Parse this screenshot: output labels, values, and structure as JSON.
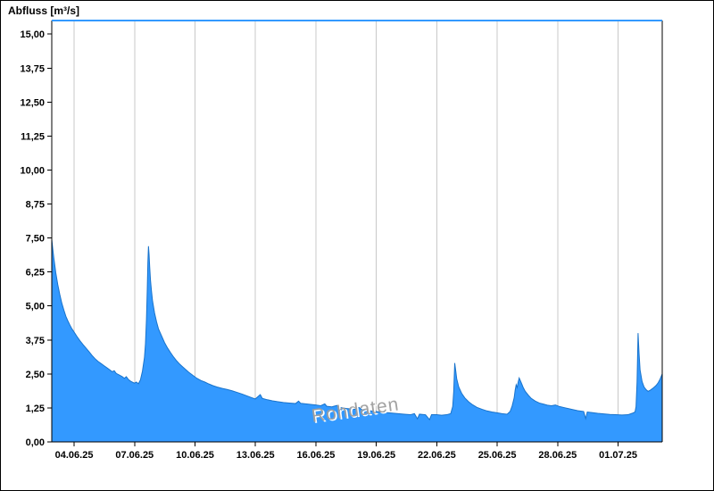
{
  "watermark": {
    "text": "Rohdaten",
    "color": "#9e9e9e",
    "highlight": "#ffffff"
  },
  "chart_data": {
    "type": "area",
    "title": "Abfluss [m³/s]",
    "xlabel": "",
    "ylabel": "Abfluss [m³/s]",
    "series_name": "Abfluss Rohdaten",
    "ylim": [
      0,
      15.5
    ],
    "x_range_days": [
      0,
      30.3
    ],
    "grid": "vertical-only",
    "legend_position": "none",
    "colors": {
      "area_fill": "#3399FF",
      "area_stroke": "#1873CC",
      "top_border": "#3399FF",
      "grid": "#C8C8C8",
      "axis": "#000000"
    },
    "yticks": {
      "values": [
        0,
        1.25,
        2.5,
        3.75,
        5,
        6.25,
        7.5,
        8.75,
        10,
        11.25,
        12.5,
        13.75,
        15
      ],
      "labels": [
        "0,00",
        "1,25",
        "2,50",
        "3,75",
        "5,00",
        "6,25",
        "7,50",
        "8,75",
        "10,00",
        "11,25",
        "12,50",
        "13,75",
        "15,00"
      ]
    },
    "xticks": {
      "days": [
        1.11,
        4.11,
        7.11,
        10.11,
        13.11,
        16.11,
        19.11,
        22.11,
        25.11,
        28.11
      ],
      "labels": [
        "04.06.25",
        "07.06.25",
        "10.06.25",
        "13.06.25",
        "16.06.25",
        "19.06.25",
        "22.06.25",
        "25.06.25",
        "28.06.25",
        "01.07.25"
      ]
    },
    "points": [
      [
        0,
        7.45
      ],
      [
        0.05,
        7.1
      ],
      [
        0.1,
        6.78
      ],
      [
        0.15,
        6.5
      ],
      [
        0.2,
        6.22
      ],
      [
        0.3,
        5.78
      ],
      [
        0.4,
        5.42
      ],
      [
        0.5,
        5.1
      ],
      [
        0.6,
        4.85
      ],
      [
        0.7,
        4.62
      ],
      [
        0.8,
        4.45
      ],
      [
        0.9,
        4.3
      ],
      [
        1.0,
        4.16
      ],
      [
        1.1,
        4.05
      ],
      [
        1.25,
        3.88
      ],
      [
        1.4,
        3.72
      ],
      [
        1.55,
        3.58
      ],
      [
        1.7,
        3.45
      ],
      [
        1.85,
        3.32
      ],
      [
        2.0,
        3.18
      ],
      [
        2.15,
        3.06
      ],
      [
        2.3,
        2.96
      ],
      [
        2.45,
        2.88
      ],
      [
        2.6,
        2.8
      ],
      [
        2.75,
        2.72
      ],
      [
        2.9,
        2.64
      ],
      [
        3.0,
        2.58
      ],
      [
        3.1,
        2.62
      ],
      [
        3.2,
        2.52
      ],
      [
        3.35,
        2.46
      ],
      [
        3.5,
        2.4
      ],
      [
        3.6,
        2.34
      ],
      [
        3.7,
        2.4
      ],
      [
        3.8,
        2.3
      ],
      [
        3.9,
        2.24
      ],
      [
        4.0,
        2.2
      ],
      [
        4.1,
        2.16
      ],
      [
        4.2,
        2.2
      ],
      [
        4.3,
        2.14
      ],
      [
        4.4,
        2.28
      ],
      [
        4.5,
        2.6
      ],
      [
        4.6,
        3.1
      ],
      [
        4.65,
        3.6
      ],
      [
        4.7,
        4.5
      ],
      [
        4.74,
        5.6
      ],
      [
        4.77,
        6.6
      ],
      [
        4.8,
        7.2
      ],
      [
        4.83,
        6.9
      ],
      [
        4.86,
        6.45
      ],
      [
        4.9,
        5.95
      ],
      [
        4.95,
        5.55
      ],
      [
        5.0,
        5.2
      ],
      [
        5.1,
        4.75
      ],
      [
        5.2,
        4.42
      ],
      [
        5.3,
        4.15
      ],
      [
        5.45,
        3.9
      ],
      [
        5.6,
        3.65
      ],
      [
        5.75,
        3.45
      ],
      [
        5.9,
        3.28
      ],
      [
        6.05,
        3.12
      ],
      [
        6.2,
        2.98
      ],
      [
        6.35,
        2.86
      ],
      [
        6.5,
        2.76
      ],
      [
        6.65,
        2.66
      ],
      [
        6.8,
        2.56
      ],
      [
        7.0,
        2.45
      ],
      [
        7.2,
        2.34
      ],
      [
        7.4,
        2.26
      ],
      [
        7.6,
        2.2
      ],
      [
        7.8,
        2.13
      ],
      [
        8.0,
        2.07
      ],
      [
        8.2,
        2.02
      ],
      [
        8.45,
        1.97
      ],
      [
        8.7,
        1.93
      ],
      [
        8.95,
        1.88
      ],
      [
        9.2,
        1.82
      ],
      [
        9.45,
        1.76
      ],
      [
        9.7,
        1.69
      ],
      [
        9.95,
        1.62
      ],
      [
        10.1,
        1.58
      ],
      [
        10.35,
        1.74
      ],
      [
        10.45,
        1.6
      ],
      [
        10.7,
        1.55
      ],
      [
        10.95,
        1.51
      ],
      [
        11.2,
        1.48
      ],
      [
        11.5,
        1.45
      ],
      [
        11.8,
        1.43
      ],
      [
        12.1,
        1.41
      ],
      [
        12.25,
        1.5
      ],
      [
        12.35,
        1.42
      ],
      [
        12.6,
        1.4
      ],
      [
        12.85,
        1.38
      ],
      [
        13.1,
        1.36
      ],
      [
        13.35,
        1.33
      ],
      [
        13.55,
        1.4
      ],
      [
        13.65,
        1.31
      ],
      [
        13.9,
        1.29
      ],
      [
        14.15,
        1.34
      ],
      [
        14.35,
        1.26
      ],
      [
        14.6,
        1.23
      ],
      [
        14.85,
        1.21
      ],
      [
        15.1,
        1.2
      ],
      [
        15.25,
        1.27
      ],
      [
        15.4,
        1.18
      ],
      [
        15.7,
        1.15
      ],
      [
        16.0,
        1.13
      ],
      [
        16.3,
        1.1
      ],
      [
        16.6,
        1.08
      ],
      [
        16.9,
        1.06
      ],
      [
        17.2,
        1.04
      ],
      [
        17.5,
        1.02
      ],
      [
        17.8,
        1.0
      ],
      [
        18.0,
        1.04
      ],
      [
        18.15,
        0.85
      ],
      [
        18.25,
        1.02
      ],
      [
        18.55,
        1.0
      ],
      [
        18.75,
        0.82
      ],
      [
        18.85,
        1.0
      ],
      [
        19.1,
        1.0
      ],
      [
        19.35,
        0.98
      ],
      [
        19.6,
        1.0
      ],
      [
        19.8,
        1.04
      ],
      [
        19.9,
        1.3
      ],
      [
        19.95,
        1.85
      ],
      [
        20.0,
        2.9
      ],
      [
        20.05,
        2.62
      ],
      [
        20.1,
        2.32
      ],
      [
        20.2,
        2.02
      ],
      [
        20.35,
        1.78
      ],
      [
        20.5,
        1.62
      ],
      [
        20.7,
        1.47
      ],
      [
        20.9,
        1.36
      ],
      [
        21.1,
        1.27
      ],
      [
        21.35,
        1.2
      ],
      [
        21.6,
        1.14
      ],
      [
        21.85,
        1.1
      ],
      [
        22.1,
        1.07
      ],
      [
        22.35,
        1.04
      ],
      [
        22.6,
        1.02
      ],
      [
        22.75,
        1.12
      ],
      [
        22.85,
        1.32
      ],
      [
        22.95,
        1.62
      ],
      [
        23.0,
        1.9
      ],
      [
        23.05,
        2.1
      ],
      [
        23.1,
        2.0
      ],
      [
        23.15,
        2.2
      ],
      [
        23.2,
        2.35
      ],
      [
        23.3,
        2.18
      ],
      [
        23.4,
        2.0
      ],
      [
        23.5,
        1.86
      ],
      [
        23.65,
        1.72
      ],
      [
        23.8,
        1.6
      ],
      [
        24.0,
        1.5
      ],
      [
        24.2,
        1.43
      ],
      [
        24.4,
        1.39
      ],
      [
        24.6,
        1.35
      ],
      [
        24.8,
        1.33
      ],
      [
        25.0,
        1.36
      ],
      [
        25.2,
        1.3
      ],
      [
        25.5,
        1.25
      ],
      [
        25.8,
        1.2
      ],
      [
        26.1,
        1.15
      ],
      [
        26.4,
        1.12
      ],
      [
        26.5,
        0.86
      ],
      [
        26.58,
        1.1
      ],
      [
        26.8,
        1.08
      ],
      [
        27.1,
        1.05
      ],
      [
        27.4,
        1.03
      ],
      [
        27.7,
        1.01
      ],
      [
        28.0,
        1.0
      ],
      [
        28.3,
        0.99
      ],
      [
        28.6,
        1.0
      ],
      [
        28.8,
        1.05
      ],
      [
        28.95,
        1.1
      ],
      [
        29.0,
        1.3
      ],
      [
        29.05,
        2.2
      ],
      [
        29.1,
        4.0
      ],
      [
        29.15,
        3.25
      ],
      [
        29.2,
        2.65
      ],
      [
        29.3,
        2.22
      ],
      [
        29.4,
        2.02
      ],
      [
        29.5,
        1.92
      ],
      [
        29.6,
        1.86
      ],
      [
        29.7,
        1.9
      ],
      [
        29.85,
        1.98
      ],
      [
        30.0,
        2.08
      ],
      [
        30.1,
        2.18
      ],
      [
        30.2,
        2.32
      ],
      [
        30.3,
        2.5
      ]
    ]
  }
}
